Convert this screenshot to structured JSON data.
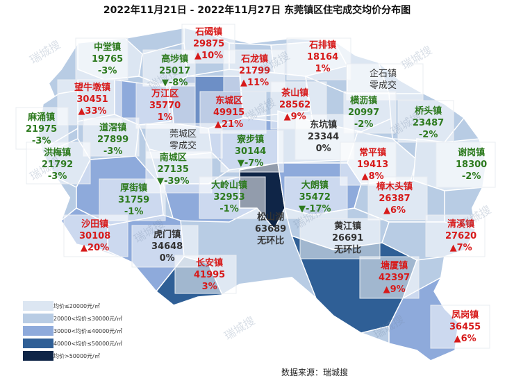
{
  "title": "2022年11月21日 - 2022年11月27日 东莞镇区住宅成交均价分布图",
  "source": "数据来源：瑞城搜",
  "watermark": "瑞城搜",
  "legend": [
    {
      "label": "均价≤20000元/㎡",
      "color": "#dce6f2"
    },
    {
      "label": "20000<均价≤30000元/㎡",
      "color": "#b8cce4"
    },
    {
      "label": "30000<均价≤40000元/㎡",
      "color": "#8eaadb"
    },
    {
      "label": "40000<均价≤50000元/㎡",
      "color": "#2f5f96"
    },
    {
      "label": "均价>50000元/㎡",
      "color": "#0f2547"
    }
  ],
  "districts": [
    {
      "name": "石碣镇",
      "price": "29875",
      "change": "▲10%",
      "dir": "up"
    },
    {
      "name": "石排镇",
      "price": "18164",
      "change": "1%",
      "dir": "up"
    },
    {
      "name": "中堂镇",
      "price": "19765",
      "change": "-3%",
      "dir": "down"
    },
    {
      "name": "高埗镇",
      "price": "25017",
      "change": "▼-8%",
      "dir": "down"
    },
    {
      "name": "石龙镇",
      "price": "21799",
      "change": "▲11%",
      "dir": "up"
    },
    {
      "name": "企石镇",
      "price": "零成交",
      "change": "",
      "dir": "none"
    },
    {
      "name": "望牛墩镇",
      "price": "30451",
      "change": "▲33%",
      "dir": "up"
    },
    {
      "name": "万江区",
      "price": "35770",
      "change": "1%",
      "dir": "up"
    },
    {
      "name": "东城区",
      "price": "49915",
      "change": "▲21%",
      "dir": "up"
    },
    {
      "name": "茶山镇",
      "price": "28562",
      "change": "▲9%",
      "dir": "up"
    },
    {
      "name": "横沥镇",
      "price": "20997",
      "change": "-2%",
      "dir": "down"
    },
    {
      "name": "桥头镇",
      "price": "23487",
      "change": "-2%",
      "dir": "down"
    },
    {
      "name": "麻涌镇",
      "price": "21975",
      "change": "-3%",
      "dir": "down"
    },
    {
      "name": "道滘镇",
      "price": "27899",
      "change": "-3%",
      "dir": "down"
    },
    {
      "name": "莞城区",
      "price": "零成交",
      "change": "",
      "dir": "none"
    },
    {
      "name": "寮步镇",
      "price": "30144",
      "change": "▼-7%",
      "dir": "down"
    },
    {
      "name": "东坑镇",
      "price": "23344",
      "change": "0%",
      "dir": "none"
    },
    {
      "name": "洪梅镇",
      "price": "21792",
      "change": "-3%",
      "dir": "down"
    },
    {
      "name": "南城区",
      "price": "27135",
      "change": "▼-39%",
      "dir": "down"
    },
    {
      "name": "常平镇",
      "price": "19413",
      "change": "▲8%",
      "dir": "up"
    },
    {
      "name": "谢岗镇",
      "price": "18300",
      "change": "-2%",
      "dir": "down"
    },
    {
      "name": "厚街镇",
      "price": "31759",
      "change": "-1%",
      "dir": "down"
    },
    {
      "name": "大岭山镇",
      "price": "32953",
      "change": "-1%",
      "dir": "down"
    },
    {
      "name": "大朗镇",
      "price": "35472",
      "change": "▼-17%",
      "dir": "down"
    },
    {
      "name": "樟木头镇",
      "price": "26387",
      "change": "▲6%",
      "dir": "up"
    },
    {
      "name": "沙田镇",
      "price": "30108",
      "change": "▲20%",
      "dir": "up"
    },
    {
      "name": "虎门镇",
      "price": "34648",
      "change": "0%",
      "dir": "none"
    },
    {
      "name": "松山湖",
      "price": "63689",
      "change": "无环比",
      "dir": "none"
    },
    {
      "name": "黄江镇",
      "price": "26691",
      "change": "无环比",
      "dir": "none"
    },
    {
      "name": "清溪镇",
      "price": "27620",
      "change": "▲7%",
      "dir": "up"
    },
    {
      "name": "长安镇",
      "price": "41995",
      "change": "3%",
      "dir": "up"
    },
    {
      "name": "塘厦镇",
      "price": "42397",
      "change": "▲9%",
      "dir": "up"
    },
    {
      "name": "凤岗镇",
      "price": "36455",
      "change": "▲6%",
      "dir": "up"
    }
  ]
}
